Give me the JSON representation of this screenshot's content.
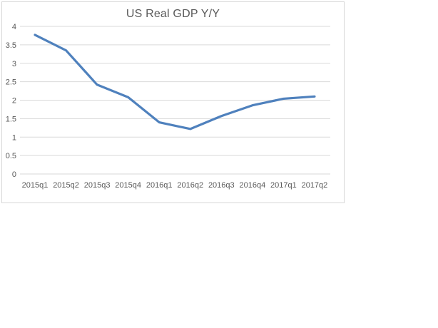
{
  "chart_data": {
    "type": "line",
    "title": "US Real GDP Y/Y",
    "categories": [
      "2015q1",
      "2015q2",
      "2015q3",
      "2015q4",
      "2016q1",
      "2016q2",
      "2016q3",
      "2016q4",
      "2017q1",
      "2017q2"
    ],
    "series": [
      {
        "name": "US Real GDP Y/Y",
        "values": [
          3.77,
          3.35,
          2.42,
          2.08,
          1.4,
          1.22,
          1.57,
          1.86,
          2.04,
          2.1
        ]
      }
    ],
    "y_ticks": [
      "0",
      "0.5",
      "1",
      "1.5",
      "2",
      "2.5",
      "3",
      "3.5",
      "4"
    ],
    "ylim": [
      0,
      4
    ],
    "xlabel": "",
    "ylabel": "",
    "grid": "horizontal",
    "legend": "none",
    "colors": {
      "line": "#4F81BD",
      "gridline": "#D9D9D9",
      "axis_line": "#D9D9D9",
      "tick_label": "#595959",
      "title": "#595959",
      "chart_border": "#D7D7D7",
      "background": "#FFFFFF"
    }
  }
}
